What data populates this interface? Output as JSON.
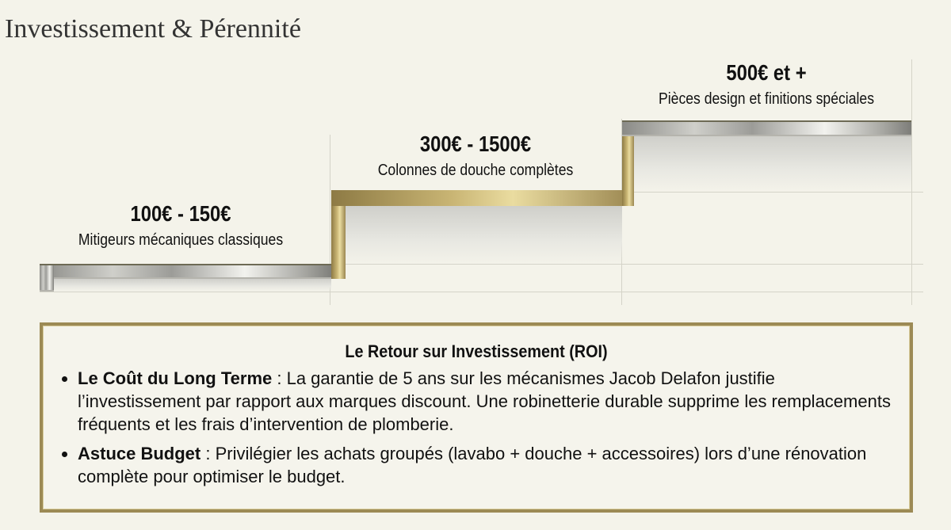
{
  "title": "Investissement & Pérennité",
  "steps": [
    {
      "price": "100€ - 150€",
      "description": "Mitigeurs mécaniques classiques"
    },
    {
      "price": "300€ - 1500€",
      "description": "Colonnes de douche complètes"
    },
    {
      "price": "500€ et +",
      "description": "Pièces design et finitions spéciales"
    }
  ],
  "roi": {
    "heading": "Le Retour sur Investissement (ROI)",
    "bullets": [
      {
        "label": "Le Coût du Long Terme",
        "text": " : La garantie de 5 ans sur les mécanismes Jacob Delafon justifie l’investissement par rapport aux marques discount. Une robinetterie durable supprime les remplacements fréquents et les frais d’intervention de plomberie."
      },
      {
        "label": "Astuce Budget",
        "text": " : Privilégier les achats groupés (lavabo + douche + accessoires) lors d’une rénovation complète pour optimiser le budget."
      }
    ]
  },
  "colors": {
    "gold": "#9c8a55",
    "background": "#f4f3ea"
  }
}
